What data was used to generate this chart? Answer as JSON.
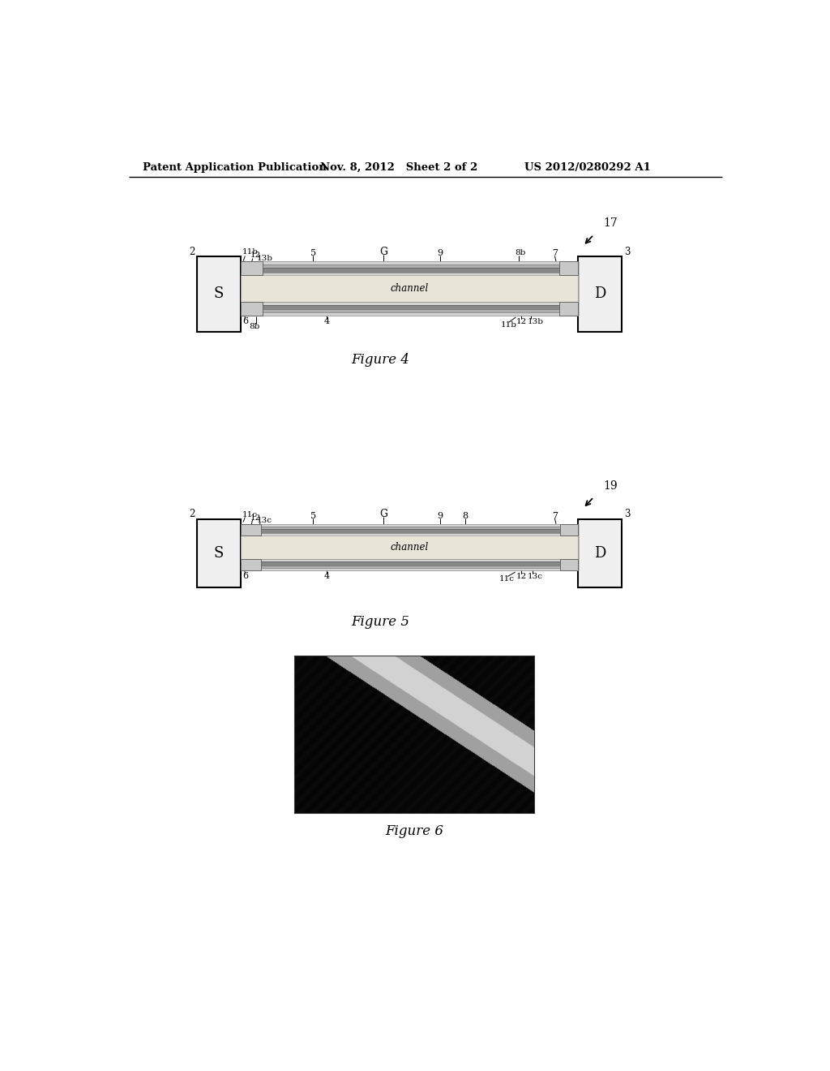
{
  "header_left": "Patent Application Publication",
  "header_mid": "Nov. 8, 2012   Sheet 2 of 2",
  "header_right": "US 2012/0280292 A1",
  "fig4_label": "Figure 4",
  "fig5_label": "Figure 5",
  "fig6_label": "Figure 6",
  "fig4_ref": "17",
  "fig5_ref": "19",
  "bg_color": "#ffffff"
}
